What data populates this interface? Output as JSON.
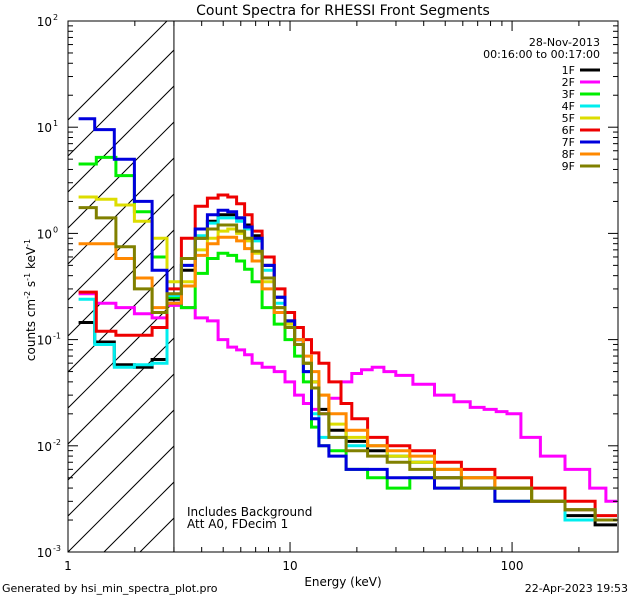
{
  "chart_data": {
    "type": "line",
    "title": "Count Spectra for RHESSI Front Segments",
    "xlabel": "Energy (keV)",
    "ylabel_parts": {
      "base": "counts cm",
      "e1": "-2",
      "mid": " s",
      "e2": "-1",
      "tail": " keV",
      "e3": "-1"
    },
    "xscale": "log",
    "yscale": "log",
    "xlim": [
      1,
      300
    ],
    "ylim": [
      0.001,
      100
    ],
    "x_ticks": [
      {
        "value": 1,
        "label": "1"
      },
      {
        "value": 10,
        "label": "10"
      },
      {
        "value": 100,
        "label": "100"
      }
    ],
    "y_ticks": [
      {
        "value": 0.001,
        "base": "10",
        "exp": "-3"
      },
      {
        "value": 0.01,
        "base": "10",
        "exp": "-2"
      },
      {
        "value": 0.1,
        "base": "10",
        "exp": "-1"
      },
      {
        "value": 1,
        "base": "10",
        "exp": "0"
      },
      {
        "value": 10,
        "base": "10",
        "exp": "1"
      },
      {
        "value": 100,
        "base": "10",
        "exp": "2"
      }
    ],
    "excluded_region": {
      "from": 1,
      "to": 3
    },
    "date": "28-Nov-2013",
    "time_range": "00:16:00 to 00:17:00",
    "annotation_lines": [
      "Includes Background",
      "Att A0, FDecim 1"
    ],
    "legend_position": "top-right",
    "series": [
      {
        "name": "1F",
        "color": "#000000",
        "points": [
          [
            1.2,
            0.145
          ],
          [
            1.45,
            0.095
          ],
          [
            1.8,
            0.058
          ],
          [
            2.2,
            0.055
          ],
          [
            2.6,
            0.065
          ],
          [
            3.0,
            0.24
          ],
          [
            3.5,
            0.45
          ],
          [
            4.0,
            0.9
          ],
          [
            4.5,
            1.3
          ],
          [
            5.0,
            1.5
          ],
          [
            5.5,
            1.5
          ],
          [
            6.0,
            1.4
          ],
          [
            6.5,
            1.2
          ],
          [
            7.0,
            0.95
          ],
          [
            8.0,
            0.5
          ],
          [
            9.0,
            0.25
          ],
          [
            10,
            0.15
          ],
          [
            11,
            0.1
          ],
          [
            12,
            0.06
          ],
          [
            13,
            0.04
          ],
          [
            14,
            0.022
          ],
          [
            16,
            0.014
          ],
          [
            20,
            0.011
          ],
          [
            25,
            0.009
          ],
          [
            30,
            0.008
          ],
          [
            40,
            0.007
          ],
          [
            50,
            0.005
          ],
          [
            70,
            0.005
          ],
          [
            100,
            0.004
          ],
          [
            150,
            0.003
          ],
          [
            200,
            0.0022
          ],
          [
            280,
            0.0018
          ]
        ]
      },
      {
        "name": "2F",
        "color": "#ff00ff",
        "points": [
          [
            1.2,
            0.27
          ],
          [
            1.5,
            0.22
          ],
          [
            1.8,
            0.2
          ],
          [
            2.2,
            0.175
          ],
          [
            2.6,
            0.16
          ],
          [
            3.0,
            0.21
          ],
          [
            3.5,
            0.2
          ],
          [
            4.0,
            0.16
          ],
          [
            4.5,
            0.15
          ],
          [
            5.0,
            0.1
          ],
          [
            5.5,
            0.085
          ],
          [
            6.0,
            0.08
          ],
          [
            6.5,
            0.072
          ],
          [
            7.0,
            0.06
          ],
          [
            8.0,
            0.055
          ],
          [
            9.0,
            0.05
          ],
          [
            10,
            0.04
          ],
          [
            11,
            0.03
          ],
          [
            12,
            0.025
          ],
          [
            13,
            0.022
          ],
          [
            14,
            0.02
          ],
          [
            16,
            0.028
          ],
          [
            18,
            0.04
          ],
          [
            20,
            0.048
          ],
          [
            22,
            0.052
          ],
          [
            25,
            0.055
          ],
          [
            28,
            0.05
          ],
          [
            32,
            0.046
          ],
          [
            40,
            0.038
          ],
          [
            50,
            0.03
          ],
          [
            60,
            0.026
          ],
          [
            70,
            0.023
          ],
          [
            80,
            0.022
          ],
          [
            90,
            0.021
          ],
          [
            100,
            0.02
          ],
          [
            120,
            0.012
          ],
          [
            150,
            0.008
          ],
          [
            200,
            0.006
          ],
          [
            250,
            0.004
          ],
          [
            280,
            0.003
          ]
        ]
      },
      {
        "name": "3F",
        "color": "#00ee00",
        "points": [
          [
            1.2,
            4.5
          ],
          [
            1.5,
            5.2
          ],
          [
            1.8,
            3.5
          ],
          [
            2.2,
            1.6
          ],
          [
            2.6,
            0.6
          ],
          [
            3.0,
            0.25
          ],
          [
            3.5,
            0.2
          ],
          [
            4.0,
            0.42
          ],
          [
            4.5,
            0.58
          ],
          [
            5.0,
            0.65
          ],
          [
            5.5,
            0.62
          ],
          [
            6.0,
            0.55
          ],
          [
            6.5,
            0.46
          ],
          [
            7.0,
            0.35
          ],
          [
            8.0,
            0.2
          ],
          [
            9.0,
            0.14
          ],
          [
            10,
            0.1
          ],
          [
            11,
            0.07
          ],
          [
            12,
            0.04
          ],
          [
            13,
            0.015
          ],
          [
            14,
            0.01
          ],
          [
            16,
            0.009
          ],
          [
            20,
            0.006
          ],
          [
            25,
            0.005
          ],
          [
            30,
            0.004
          ],
          [
            40,
            0.005
          ],
          [
            50,
            0.004
          ],
          [
            70,
            0.004
          ],
          [
            100,
            0.003
          ],
          [
            150,
            0.003
          ],
          [
            200,
            0.002
          ],
          [
            280,
            0.002
          ]
        ]
      },
      {
        "name": "4F",
        "color": "#00eeee",
        "points": [
          [
            1.2,
            0.24
          ],
          [
            1.45,
            0.09
          ],
          [
            1.8,
            0.055
          ],
          [
            2.2,
            0.058
          ],
          [
            2.6,
            0.06
          ],
          [
            3.0,
            0.26
          ],
          [
            3.5,
            0.5
          ],
          [
            4.0,
            0.95
          ],
          [
            4.5,
            1.25
          ],
          [
            5.0,
            1.4
          ],
          [
            5.5,
            1.4
          ],
          [
            6.0,
            1.3
          ],
          [
            6.5,
            1.1
          ],
          [
            7.0,
            0.85
          ],
          [
            8.0,
            0.45
          ],
          [
            9.0,
            0.22
          ],
          [
            10,
            0.14
          ],
          [
            11,
            0.1
          ],
          [
            12,
            0.05
          ],
          [
            13,
            0.02
          ],
          [
            14,
            0.012
          ],
          [
            16,
            0.012
          ],
          [
            20,
            0.01
          ],
          [
            25,
            0.01
          ],
          [
            30,
            0.008
          ],
          [
            40,
            0.007
          ],
          [
            50,
            0.006
          ],
          [
            70,
            0.005
          ],
          [
            100,
            0.004
          ],
          [
            150,
            0.003
          ],
          [
            200,
            0.002
          ],
          [
            280,
            0.002
          ]
        ]
      },
      {
        "name": "5F",
        "color": "#dddd00",
        "points": [
          [
            1.2,
            2.2
          ],
          [
            1.5,
            2.1
          ],
          [
            1.8,
            1.85
          ],
          [
            2.2,
            1.3
          ],
          [
            2.6,
            0.9
          ],
          [
            3.0,
            0.35
          ],
          [
            3.5,
            0.35
          ],
          [
            4.0,
            0.7
          ],
          [
            4.5,
            0.9
          ],
          [
            5.0,
            1.05
          ],
          [
            5.5,
            1.1
          ],
          [
            6.0,
            1.0
          ],
          [
            6.5,
            0.85
          ],
          [
            7.0,
            0.65
          ],
          [
            8.0,
            0.35
          ],
          [
            9.0,
            0.2
          ],
          [
            10,
            0.14
          ],
          [
            11,
            0.1
          ],
          [
            12,
            0.06
          ],
          [
            13,
            0.04
          ],
          [
            14,
            0.03
          ],
          [
            16,
            0.016
          ],
          [
            20,
            0.012
          ],
          [
            25,
            0.01
          ],
          [
            30,
            0.008
          ],
          [
            40,
            0.007
          ],
          [
            50,
            0.006
          ],
          [
            70,
            0.005
          ],
          [
            100,
            0.004
          ],
          [
            150,
            0.003
          ],
          [
            200,
            0.0025
          ],
          [
            280,
            0.002
          ]
        ]
      },
      {
        "name": "6F",
        "color": "#ee0000",
        "points": [
          [
            1.2,
            0.28
          ],
          [
            1.5,
            0.12
          ],
          [
            1.8,
            0.11
          ],
          [
            2.2,
            0.11
          ],
          [
            2.6,
            0.13
          ],
          [
            3.0,
            0.3
          ],
          [
            3.5,
            0.9
          ],
          [
            4.0,
            1.8
          ],
          [
            4.5,
            2.15
          ],
          [
            5.0,
            2.3
          ],
          [
            5.5,
            2.2
          ],
          [
            6.0,
            1.9
          ],
          [
            6.5,
            1.5
          ],
          [
            7.0,
            1.05
          ],
          [
            8.0,
            0.6
          ],
          [
            9.0,
            0.3
          ],
          [
            10,
            0.18
          ],
          [
            11,
            0.13
          ],
          [
            12,
            0.1
          ],
          [
            13,
            0.075
          ],
          [
            14,
            0.06
          ],
          [
            16,
            0.04
          ],
          [
            18,
            0.025
          ],
          [
            20,
            0.018
          ],
          [
            25,
            0.012
          ],
          [
            30,
            0.01
          ],
          [
            40,
            0.009
          ],
          [
            50,
            0.007
          ],
          [
            70,
            0.006
          ],
          [
            100,
            0.005
          ],
          [
            150,
            0.004
          ],
          [
            200,
            0.003
          ],
          [
            280,
            0.0022
          ]
        ]
      },
      {
        "name": "7F",
        "color": "#0000dd",
        "points": [
          [
            1.2,
            12
          ],
          [
            1.45,
            9.5
          ],
          [
            1.8,
            5.0
          ],
          [
            2.2,
            2.0
          ],
          [
            2.6,
            0.45
          ],
          [
            3.0,
            0.22
          ],
          [
            3.5,
            0.5
          ],
          [
            4.0,
            1.1
          ],
          [
            4.5,
            1.5
          ],
          [
            5.0,
            1.65
          ],
          [
            5.5,
            1.6
          ],
          [
            6.0,
            1.4
          ],
          [
            6.5,
            1.15
          ],
          [
            7.0,
            0.9
          ],
          [
            8.0,
            0.5
          ],
          [
            9.0,
            0.25
          ],
          [
            10,
            0.15
          ],
          [
            11,
            0.1
          ],
          [
            12,
            0.05
          ],
          [
            13,
            0.018
          ],
          [
            14,
            0.01
          ],
          [
            16,
            0.008
          ],
          [
            20,
            0.006
          ],
          [
            25,
            0.006
          ],
          [
            30,
            0.005
          ],
          [
            40,
            0.005
          ],
          [
            50,
            0.004
          ],
          [
            70,
            0.004
          ],
          [
            100,
            0.003
          ],
          [
            150,
            0.003
          ],
          [
            200,
            0.0025
          ],
          [
            280,
            0.002
          ]
        ]
      },
      {
        "name": "8F",
        "color": "#ff8800",
        "points": [
          [
            1.2,
            0.8
          ],
          [
            1.5,
            0.8
          ],
          [
            1.8,
            0.58
          ],
          [
            2.2,
            0.38
          ],
          [
            2.6,
            0.2
          ],
          [
            3.0,
            0.22
          ],
          [
            3.5,
            0.32
          ],
          [
            4.0,
            0.62
          ],
          [
            4.5,
            0.8
          ],
          [
            5.0,
            0.92
          ],
          [
            5.5,
            0.92
          ],
          [
            6.0,
            0.85
          ],
          [
            6.5,
            0.72
          ],
          [
            7.0,
            0.55
          ],
          [
            8.0,
            0.3
          ],
          [
            9.0,
            0.18
          ],
          [
            10,
            0.13
          ],
          [
            11,
            0.1
          ],
          [
            12,
            0.07
          ],
          [
            13,
            0.05
          ],
          [
            14,
            0.03
          ],
          [
            16,
            0.02
          ],
          [
            20,
            0.014
          ],
          [
            25,
            0.01
          ],
          [
            30,
            0.009
          ],
          [
            40,
            0.008
          ],
          [
            50,
            0.006
          ],
          [
            70,
            0.005
          ],
          [
            100,
            0.004
          ],
          [
            150,
            0.003
          ],
          [
            200,
            0.0025
          ],
          [
            280,
            0.002
          ]
        ]
      },
      {
        "name": "9F",
        "color": "#808000",
        "points": [
          [
            1.2,
            1.75
          ],
          [
            1.5,
            1.4
          ],
          [
            1.8,
            0.75
          ],
          [
            2.2,
            0.3
          ],
          [
            2.6,
            0.18
          ],
          [
            3.0,
            0.27
          ],
          [
            3.5,
            0.58
          ],
          [
            4.0,
            0.9
          ],
          [
            4.5,
            1.1
          ],
          [
            5.0,
            1.2
          ],
          [
            5.5,
            1.2
          ],
          [
            6.0,
            1.05
          ],
          [
            6.5,
            0.9
          ],
          [
            7.0,
            0.68
          ],
          [
            8.0,
            0.38
          ],
          [
            9.0,
            0.2
          ],
          [
            10,
            0.13
          ],
          [
            11,
            0.09
          ],
          [
            12,
            0.06
          ],
          [
            13,
            0.035
          ],
          [
            14,
            0.02
          ],
          [
            16,
            0.012
          ],
          [
            20,
            0.009
          ],
          [
            25,
            0.008
          ],
          [
            30,
            0.007
          ],
          [
            40,
            0.006
          ],
          [
            50,
            0.005
          ],
          [
            70,
            0.004
          ],
          [
            100,
            0.004
          ],
          [
            150,
            0.003
          ],
          [
            200,
            0.0025
          ],
          [
            280,
            0.002
          ]
        ]
      }
    ]
  },
  "footer": {
    "generated_by": "Generated by hsi_min_spectra_plot.pro",
    "timestamp": "22-Apr-2023 19:53"
  }
}
